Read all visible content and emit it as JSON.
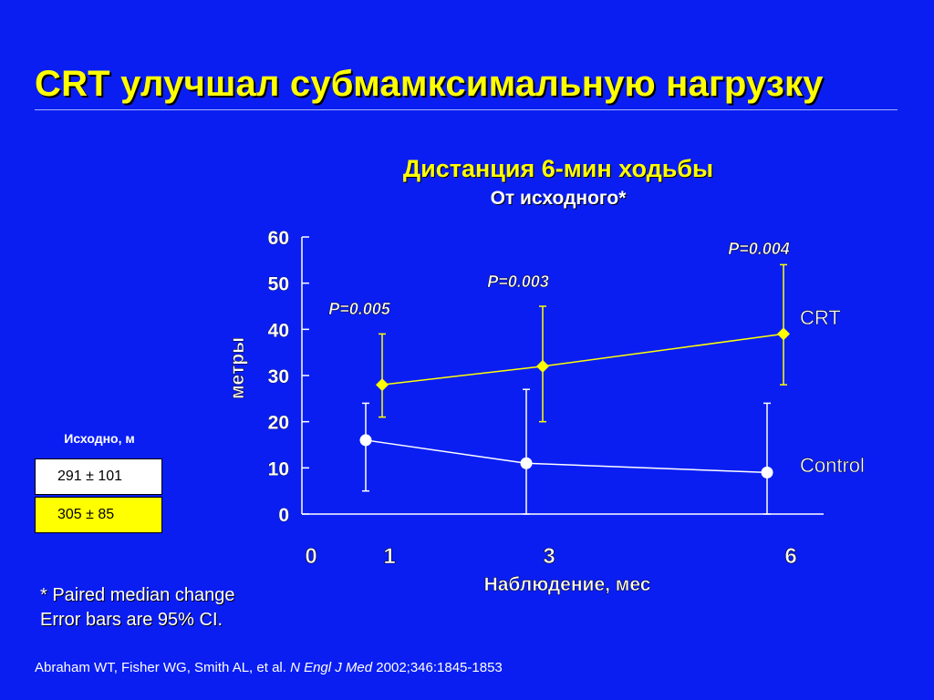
{
  "title": "CRT улучшал субмамксимальную нагрузку",
  "chart_data": {
    "type": "line",
    "title": "Дистанция 6-мин ходьбы",
    "subtitle": "От исходного*",
    "xlabel": "Наблюдение, мес",
    "ylabel": "метры",
    "ylim": [
      0,
      60
    ],
    "yticks": [
      0,
      10,
      20,
      30,
      40,
      50,
      60
    ],
    "xticks": [
      0,
      1,
      3,
      6
    ],
    "grid": false,
    "series": [
      {
        "name": "CRT",
        "color": "#ffff00",
        "marker": "diamond",
        "points": [
          {
            "x": 1,
            "y": 28,
            "ci_low": 21,
            "ci_high": 39
          },
          {
            "x": 3,
            "y": 32,
            "ci_low": 20,
            "ci_high": 45
          },
          {
            "x": 6,
            "y": 39,
            "ci_low": 28,
            "ci_high": 54
          }
        ]
      },
      {
        "name": "Control",
        "color": "#ffffff",
        "marker": "circle",
        "points": [
          {
            "x": 1,
            "y": 16,
            "ci_low": 5,
            "ci_high": 24
          },
          {
            "x": 3,
            "y": 11,
            "ci_low": 0,
            "ci_high": 27
          },
          {
            "x": 6,
            "y": 9,
            "ci_low": 0,
            "ci_high": 24
          }
        ]
      }
    ],
    "annotations": [
      {
        "text": "P=0.005",
        "x": 1
      },
      {
        "text": "P=0.003",
        "x": 3
      },
      {
        "text": "P=0.004",
        "x": 6
      }
    ]
  },
  "baseline_table": {
    "header": "Исходно, м",
    "rows": [
      "291 ± 101",
      "305 ± 85"
    ]
  },
  "footnote": {
    "line1": "* Paired median change",
    "line2": "Error bars are 95% CI."
  },
  "citation": {
    "authors": "Abraham WT, Fisher WG, Smith AL, et al. ",
    "journal": "N Engl J Med",
    "details": " 2002;346:1845-1853"
  }
}
